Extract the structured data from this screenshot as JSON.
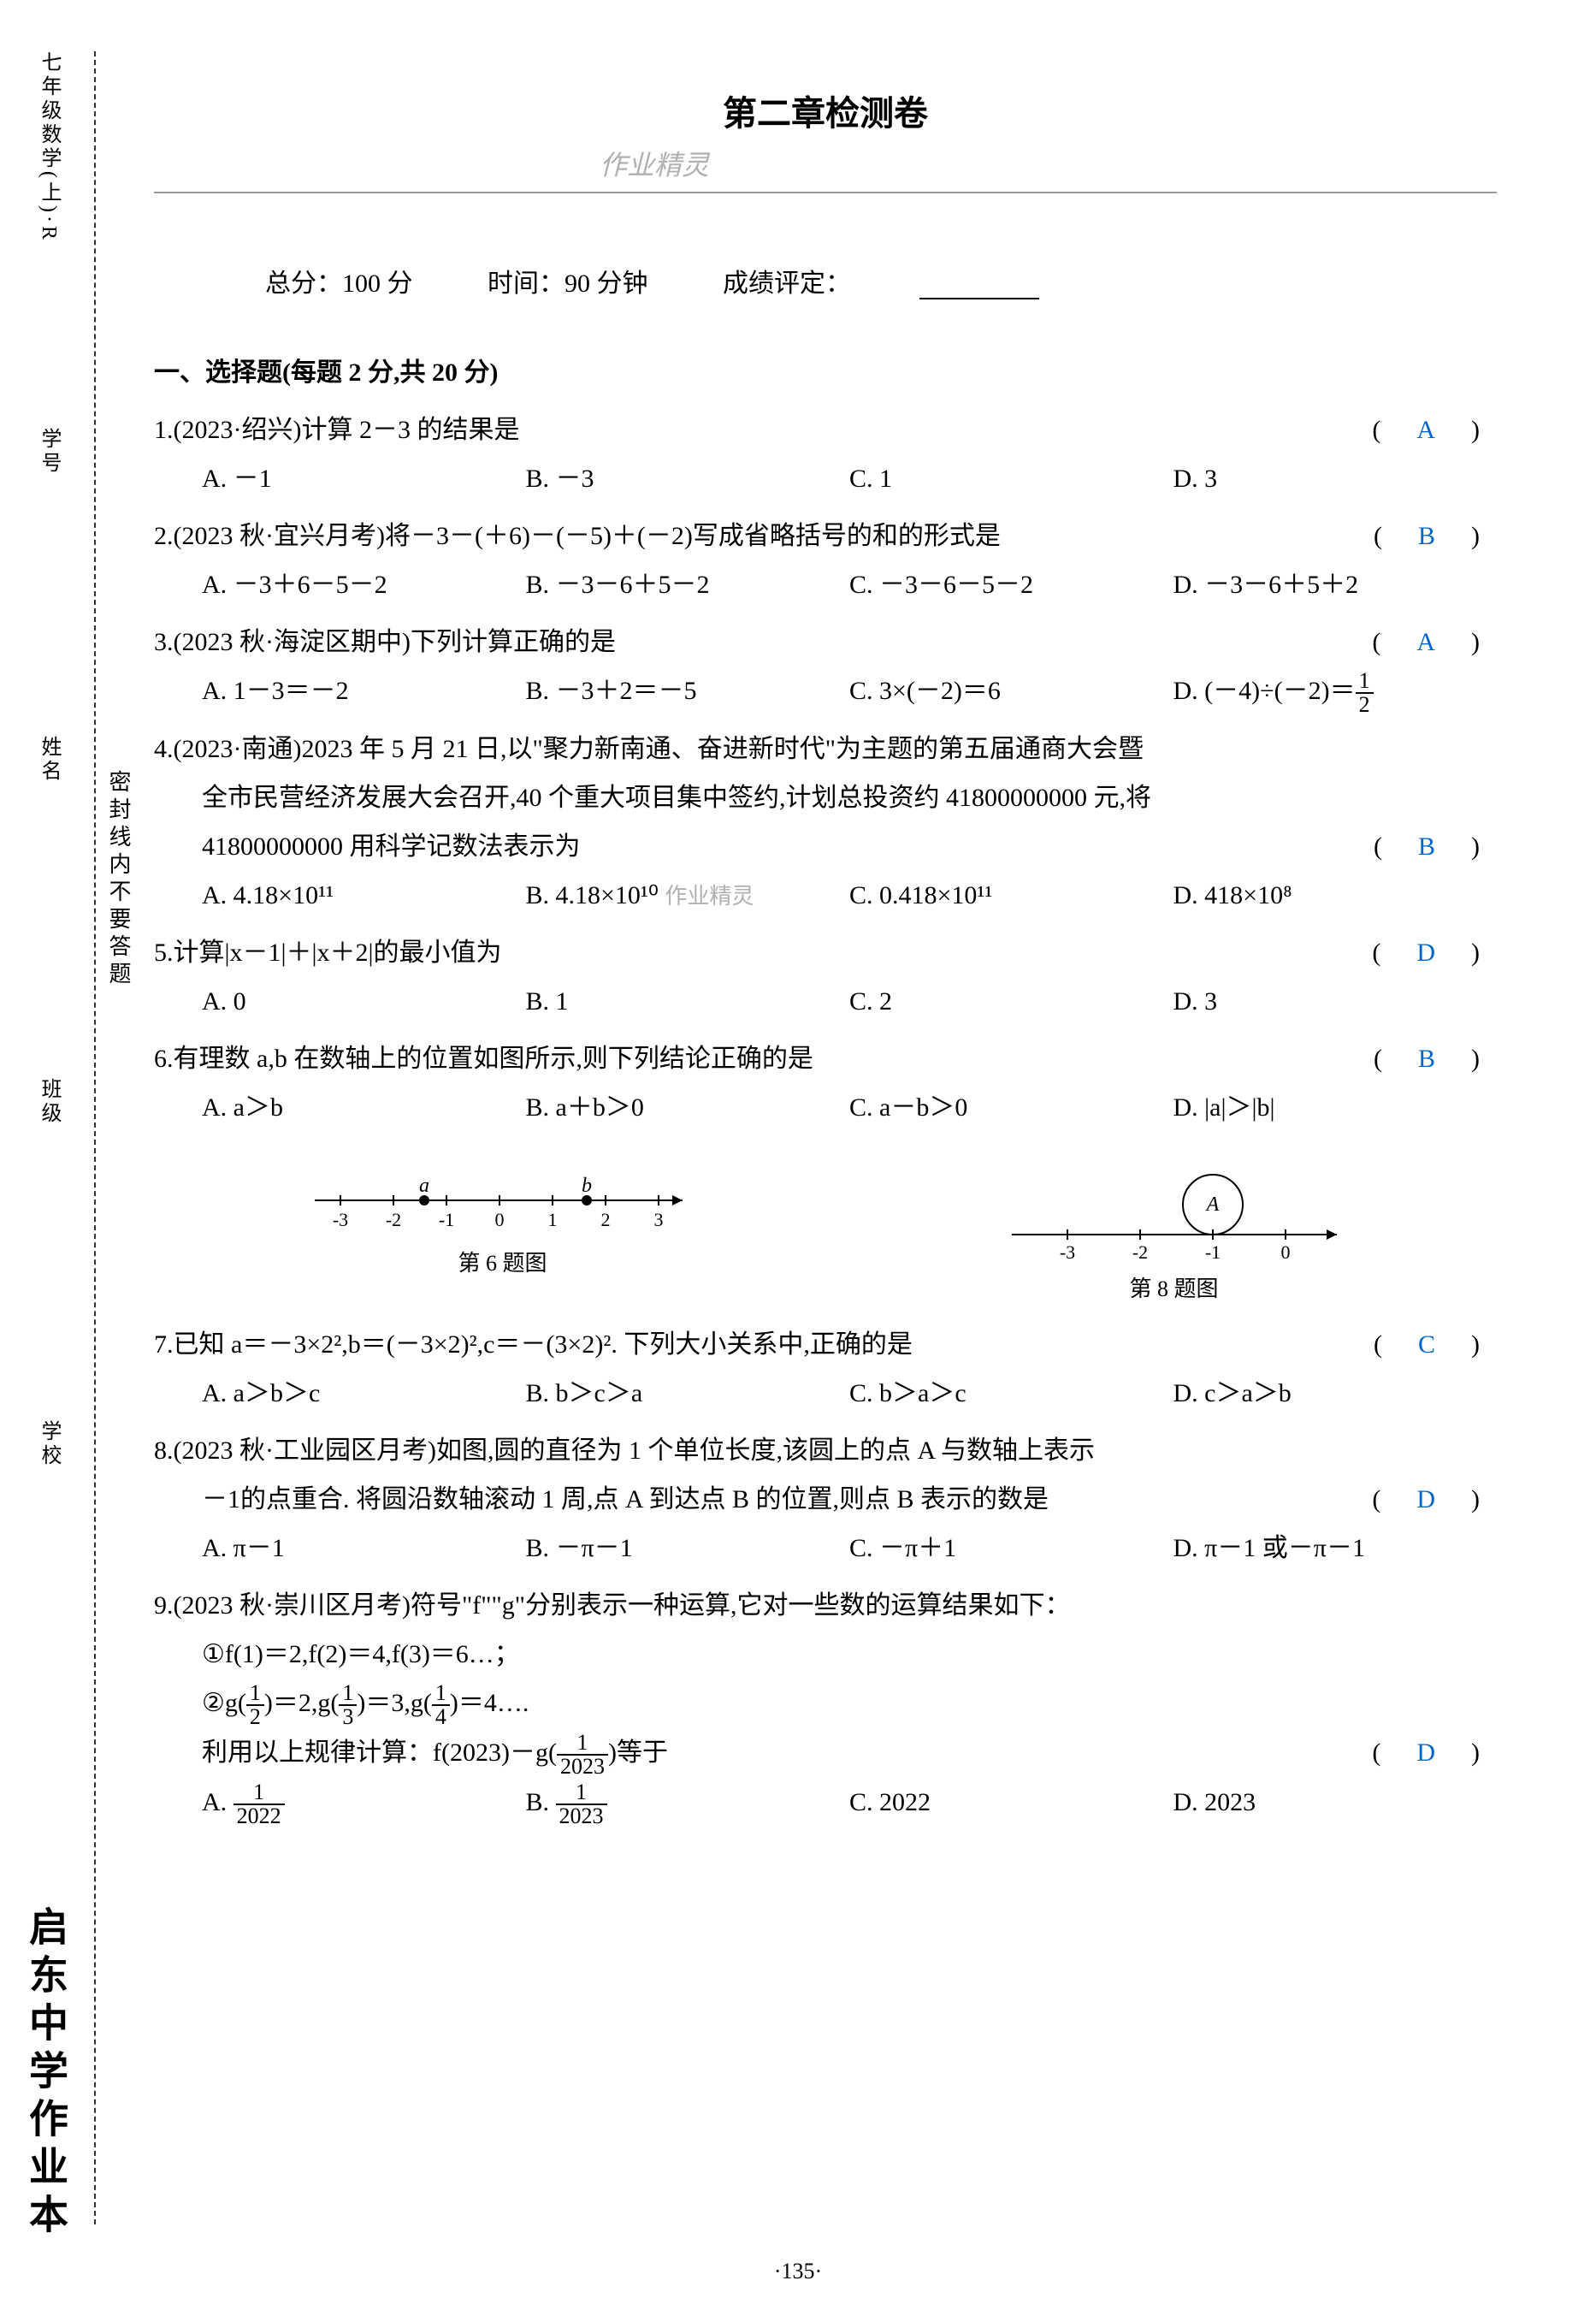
{
  "side": {
    "top_label": "七年级数学(上)·R",
    "school_label": "学校",
    "class_label": "班级",
    "name_label": "姓名",
    "number_label": "学号",
    "seal_text": "密封线内不要答题",
    "book_title": "启东中学作业本"
  },
  "header": {
    "title": "第二章检测卷",
    "watermark": "作业精灵",
    "total_score": "总分：100 分",
    "time": "时间：90 分钟",
    "grade_label": "成绩评定："
  },
  "section1": {
    "header": "一、选择题(每题 2 分,共 20 分)"
  },
  "questions": [
    {
      "num": "1.",
      "text": "(2023·绍兴)计算 2－3 的结果是",
      "answer": "A",
      "options": [
        "A. －1",
        "B. －3",
        "C. 1",
        "D. 3"
      ]
    },
    {
      "num": "2.",
      "text": "(2023 秋·宜兴月考)将－3－(＋6)－(－5)＋(－2)写成省略括号的和的形式是",
      "answer": "B",
      "options": [
        "A. －3＋6－5－2",
        "B. －3－6＋5－2",
        "C. －3－6－5－2",
        "D. －3－6＋5＋2"
      ]
    },
    {
      "num": "3.",
      "text": "(2023 秋·海淀区期中)下列计算正确的是",
      "answer": "A",
      "options": [
        "A. 1－3＝－2",
        "B. －3＋2＝－5",
        "C. 3×(－2)＝6",
        "D. (－4)÷(－2)＝"
      ]
    },
    {
      "num": "4.",
      "text": "(2023·南通)2023 年 5 月 21 日,以\"聚力新南通、奋进新时代\"为主题的第五届通商大会暨",
      "text2": "全市民营经济发展大会召开,40 个重大项目集中签约,计划总投资约 41800000000 元,将",
      "text3": "41800000000 用科学记数法表示为",
      "answer": "B",
      "options": [
        "A. 4.18×10¹¹",
        "B. 4.18×10¹⁰",
        "C. 0.418×10¹¹",
        "D. 418×10⁸"
      ]
    },
    {
      "num": "5.",
      "text": "计算|x－1|＋|x＋2|的最小值为",
      "answer": "D",
      "options": [
        "A. 0",
        "B. 1",
        "C. 2",
        "D. 3"
      ]
    },
    {
      "num": "6.",
      "text": "有理数 a,b 在数轴上的位置如图所示,则下列结论正确的是",
      "answer": "B",
      "options": [
        "A. a＞b",
        "B. a＋b＞0",
        "C. a－b＞0",
        "D. |a|＞|b|"
      ]
    },
    {
      "num": "7.",
      "text": "已知 a＝－3×2²,b＝(－3×2)²,c＝－(3×2)². 下列大小关系中,正确的是",
      "answer": "C",
      "options": [
        "A. a＞b＞c",
        "B. b＞c＞a",
        "C. b＞a＞c",
        "D. c＞a＞b"
      ]
    },
    {
      "num": "8.",
      "text": "(2023 秋·工业园区月考)如图,圆的直径为 1 个单位长度,该圆上的点 A 与数轴上表示",
      "text2": "－1的点重合. 将圆沿数轴滚动 1 周,点 A 到达点 B 的位置,则点 B 表示的数是",
      "answer": "D",
      "options": [
        "A. π－1",
        "B. －π－1",
        "C. －π＋1",
        "D. π－1 或－π－1"
      ]
    },
    {
      "num": "9.",
      "text": "(2023 秋·崇川区月考)符号\"f\"\"g\"分别表示一种运算,它对一些数的运算结果如下：",
      "text2": "①f(1)＝2,f(2)＝4,f(3)＝6…；",
      "text3frac": "②g",
      "text4": "利用以上规律计算：f(2023)－g",
      "answer": "D",
      "options": [
        "A.",
        "B.",
        "C. 2022",
        "D. 2023"
      ]
    }
  ],
  "figures": {
    "fig6_caption": "第 6 题图",
    "fig8_caption": "第 8 题图",
    "fig6": {
      "ticks": [
        "-3",
        "-2",
        "-1",
        "0",
        "1",
        "2",
        "3"
      ],
      "point_a_label": "a",
      "point_a_pos": -1.3,
      "point_b_label": "b",
      "point_b_pos": 1.8
    },
    "fig8": {
      "ticks": [
        "-3",
        "-2",
        "-1",
        "0"
      ],
      "circle_label": "A",
      "circle_center": -1
    }
  },
  "page_number": "·135·",
  "colors": {
    "text": "#000000",
    "answer": "#0066cc",
    "watermark": "#b0b0b0",
    "line": "#333333"
  }
}
